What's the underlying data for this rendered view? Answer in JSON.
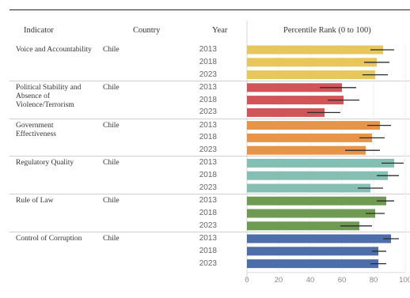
{
  "table": {
    "headers": {
      "indicator": "Indicator",
      "country": "Country",
      "year": "Year",
      "chart": "Percentile Rank (0 to 100)"
    }
  },
  "chart_data": {
    "type": "bar",
    "orientation": "horizontal",
    "title": "Percentile Rank (0 to 100)",
    "xlim": [
      0,
      100
    ],
    "xticks": [
      "0",
      "20",
      "40",
      "60",
      "80",
      "100"
    ],
    "grid": true,
    "groups": [
      {
        "indicator": "Voice and Accountability",
        "country": "Chile",
        "color": "#e7c65b",
        "rows": [
          {
            "year": "2013",
            "value": 86,
            "low": 78,
            "high": 93
          },
          {
            "year": "2018",
            "value": 82,
            "low": 74,
            "high": 90
          },
          {
            "year": "2023",
            "value": 81,
            "low": 73,
            "high": 89
          }
        ]
      },
      {
        "indicator": "Political Stability and Absence of Violence/Terrorism",
        "country": "Chile",
        "color": "#d05558",
        "rows": [
          {
            "year": "2013",
            "value": 60,
            "low": 46,
            "high": 69
          },
          {
            "year": "2018",
            "value": 61,
            "low": 51,
            "high": 71
          },
          {
            "year": "2023",
            "value": 49,
            "low": 38,
            "high": 59
          }
        ]
      },
      {
        "indicator": "Government Effectiveness",
        "country": "Chile",
        "color": "#e89448",
        "rows": [
          {
            "year": "2013",
            "value": 84,
            "low": 76,
            "high": 91
          },
          {
            "year": "2018",
            "value": 79,
            "low": 71,
            "high": 87
          },
          {
            "year": "2023",
            "value": 75,
            "low": 62,
            "high": 84
          }
        ]
      },
      {
        "indicator": "Regulatory Quality",
        "country": "Chile",
        "color": "#85bfb3",
        "rows": [
          {
            "year": "2013",
            "value": 93,
            "low": 85,
            "high": 99
          },
          {
            "year": "2018",
            "value": 89,
            "low": 82,
            "high": 96
          },
          {
            "year": "2023",
            "value": 78,
            "low": 70,
            "high": 86
          }
        ]
      },
      {
        "indicator": "Rule of Law",
        "country": "Chile",
        "color": "#6e9a52",
        "rows": [
          {
            "year": "2013",
            "value": 88,
            "low": 82,
            "high": 93
          },
          {
            "year": "2018",
            "value": 81,
            "low": 75,
            "high": 87
          },
          {
            "year": "2023",
            "value": 71,
            "low": 59,
            "high": 79
          }
        ]
      },
      {
        "indicator": "Control of Corruption",
        "country": "Chile",
        "color": "#4d6ea8",
        "rows": [
          {
            "year": "2013",
            "value": 91,
            "low": 86,
            "high": 96
          },
          {
            "year": "2018",
            "value": 83,
            "low": 79,
            "high": 88
          },
          {
            "year": "2023",
            "value": 83,
            "low": 78,
            "high": 88
          }
        ]
      }
    ]
  }
}
